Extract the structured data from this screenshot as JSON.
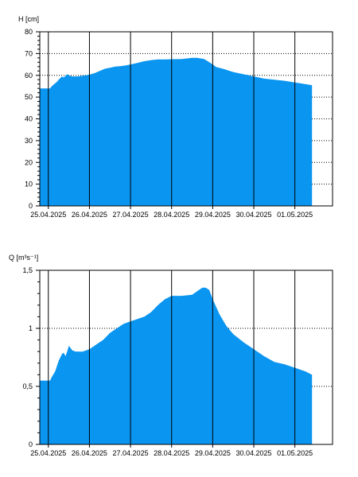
{
  "colors": {
    "area": "#0a95f0",
    "frame": "#000000",
    "grid": "#000000",
    "background": "#ffffff"
  },
  "chart_data": [
    {
      "type": "area",
      "ylabel": "H [cm]",
      "ylim": [
        0,
        80
      ],
      "yticks": [
        0,
        10,
        20,
        30,
        40,
        50,
        60,
        70,
        80
      ],
      "ytick_labels": [
        "0",
        "10",
        "20",
        "30",
        "40",
        "50",
        "60",
        "70",
        "80"
      ],
      "xlim": [
        "2025-04-24T19:00",
        "2025-05-01T22:00"
      ],
      "xticks": [
        "25.04.2025",
        "26.04.2025",
        "27.04.2025",
        "28.04.2025",
        "29.04.2025",
        "30.04.2025",
        "01.05.2025"
      ],
      "grid": {
        "horizontal": "dotted",
        "vertical": "solid"
      },
      "legend": "none",
      "series": [
        {
          "x": [
            "2025-04-24T19:00",
            "2025-04-25T01:00",
            "2025-04-25T02:00",
            "2025-04-25T05:00",
            "2025-04-25T06:00",
            "2025-04-25T08:00",
            "2025-04-25T09:00",
            "2025-04-25T11:00",
            "2025-04-25T12:00",
            "2025-04-25T14:00",
            "2025-04-25T17:00",
            "2025-04-25T22:00",
            "2025-04-26T00:00",
            "2025-04-26T03:00",
            "2025-04-26T06:00",
            "2025-04-26T09:00",
            "2025-04-26T12:00",
            "2025-04-26T15:00",
            "2025-04-26T18:00",
            "2025-04-26T21:00",
            "2025-04-27T00:00",
            "2025-04-27T04:00",
            "2025-04-27T08:00",
            "2025-04-27T12:00",
            "2025-04-27T16:00",
            "2025-04-27T20:00",
            "2025-04-28T00:00",
            "2025-04-28T06:00",
            "2025-04-28T12:00",
            "2025-04-28T15:00",
            "2025-04-28T19:00",
            "2025-04-28T22:00",
            "2025-04-29T00:00",
            "2025-04-29T02:00",
            "2025-04-29T06:00",
            "2025-04-29T12:00",
            "2025-04-29T18:00",
            "2025-04-30T00:00",
            "2025-04-30T06:00",
            "2025-04-30T12:00",
            "2025-04-30T18:00",
            "2025-05-01T00:00",
            "2025-05-01T06:00",
            "2025-05-01T10:00"
          ],
          "y": [
            54,
            54,
            55,
            57,
            58,
            59.5,
            59,
            60.5,
            60,
            59.5,
            59.5,
            60,
            60.3,
            61,
            62,
            63,
            63.5,
            64,
            64.2,
            64.5,
            65,
            65.7,
            66.5,
            67,
            67.3,
            67.3,
            67.4,
            67.5,
            68,
            68,
            67.5,
            66,
            65,
            63.8,
            63,
            61.5,
            60.5,
            59.5,
            58.5,
            58,
            57.5,
            56.7,
            56,
            55.5
          ]
        }
      ]
    },
    {
      "type": "area",
      "ylabel": "Q [m³s⁻¹]",
      "ylim": [
        0,
        1.5
      ],
      "yticks": [
        0,
        0.5,
        1,
        1.5
      ],
      "ytick_labels": [
        "0",
        "0,5",
        "1",
        "1,5"
      ],
      "xlim": [
        "2025-04-24T19:00",
        "2025-05-01T22:00"
      ],
      "xticks": [
        "25.04.2025",
        "26.04.2025",
        "27.04.2025",
        "28.04.2025",
        "29.04.2025",
        "30.04.2025",
        "01.05.2025"
      ],
      "grid": {
        "horizontal": "dotted",
        "vertical": "solid"
      },
      "legend": "none",
      "series": [
        {
          "x": [
            "2025-04-24T19:00",
            "2025-04-25T01:00",
            "2025-04-25T02:00",
            "2025-04-25T04:00",
            "2025-04-25T06:00",
            "2025-04-25T08:00",
            "2025-04-25T09:00",
            "2025-04-25T10:00",
            "2025-04-25T11:00",
            "2025-04-25T12:00",
            "2025-04-25T14:00",
            "2025-04-25T16:00",
            "2025-04-25T20:00",
            "2025-04-26T00:00",
            "2025-04-26T04:00",
            "2025-04-26T08:00",
            "2025-04-26T12:00",
            "2025-04-26T16:00",
            "2025-04-26T20:00",
            "2025-04-27T00:00",
            "2025-04-27T04:00",
            "2025-04-27T08:00",
            "2025-04-27T12:00",
            "2025-04-27T16:00",
            "2025-04-27T20:00",
            "2025-04-28T00:00",
            "2025-04-28T06:00",
            "2025-04-28T12:00",
            "2025-04-28T16:00",
            "2025-04-28T18:00",
            "2025-04-28T20:00",
            "2025-04-28T22:00",
            "2025-04-29T00:00",
            "2025-04-29T04:00",
            "2025-04-29T08:00",
            "2025-04-29T12:00",
            "2025-04-29T18:00",
            "2025-04-30T00:00",
            "2025-04-30T06:00",
            "2025-04-30T12:00",
            "2025-04-30T18:00",
            "2025-05-01T00:00",
            "2025-05-01T06:00",
            "2025-05-01T10:00"
          ],
          "y": [
            0.55,
            0.55,
            0.58,
            0.63,
            0.72,
            0.78,
            0.79,
            0.76,
            0.8,
            0.85,
            0.81,
            0.8,
            0.8,
            0.82,
            0.86,
            0.9,
            0.96,
            1.0,
            1.04,
            1.06,
            1.08,
            1.1,
            1.14,
            1.2,
            1.25,
            1.28,
            1.28,
            1.29,
            1.33,
            1.35,
            1.35,
            1.33,
            1.25,
            1.12,
            1.02,
            0.95,
            0.88,
            0.82,
            0.76,
            0.71,
            0.69,
            0.66,
            0.63,
            0.6
          ]
        }
      ]
    }
  ]
}
